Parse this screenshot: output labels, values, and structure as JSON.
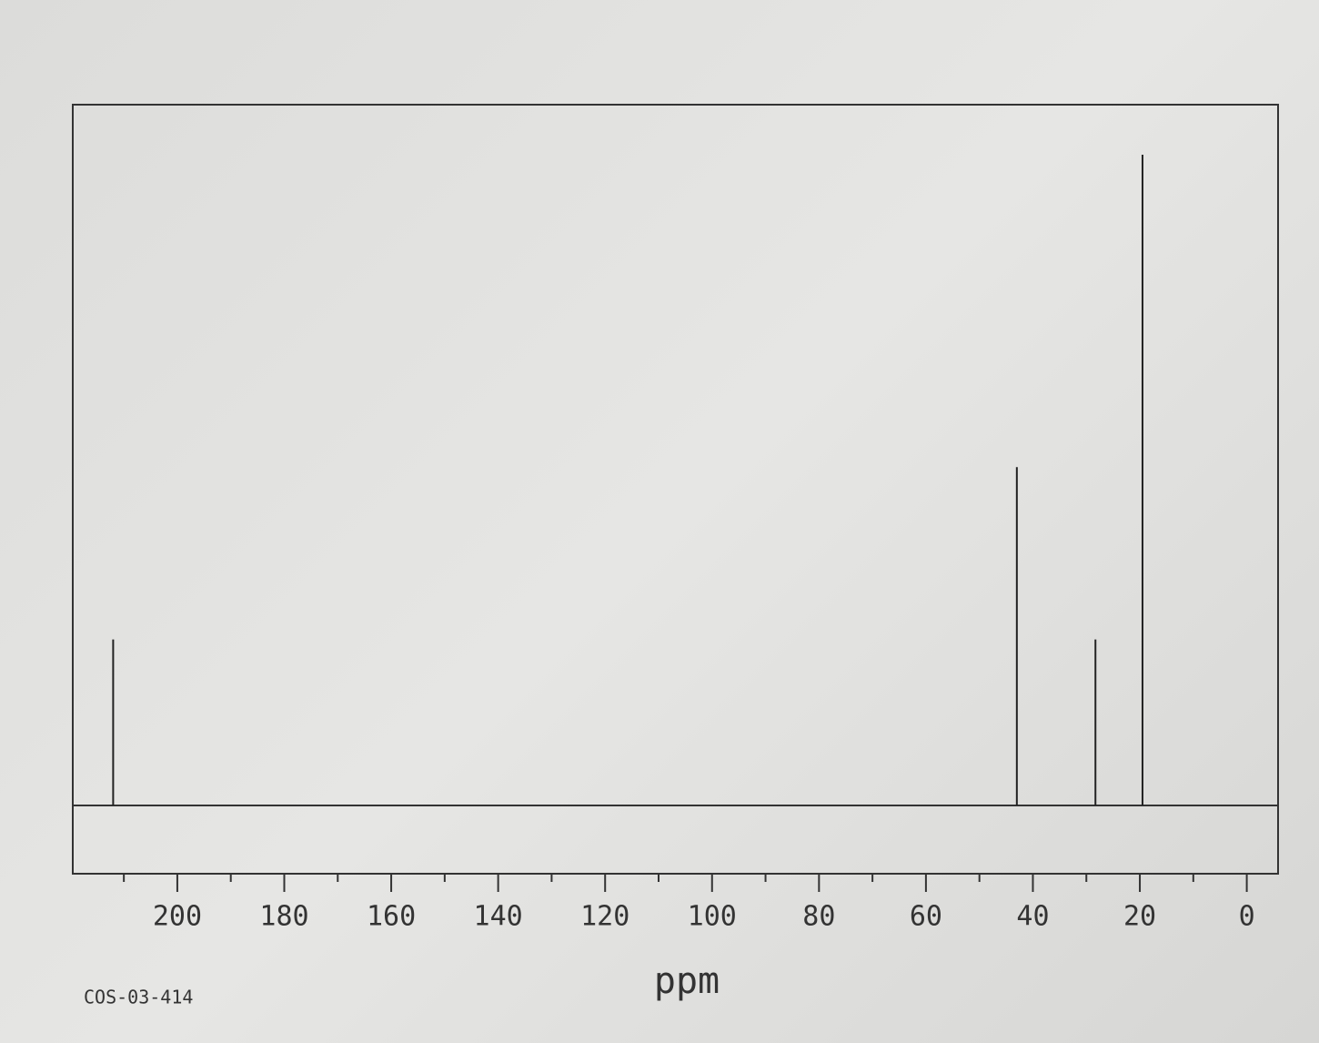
{
  "chart_data": {
    "type": "spectrum",
    "x": [
      212,
      43,
      28.3,
      19.5
    ],
    "values": [
      25.5,
      52,
      25.5,
      100
    ],
    "color": "#222222",
    "xlabel": "ppm",
    "code": "COS-03-414",
    "xlim": [
      217,
      -5
    ],
    "ylim": [
      0,
      100
    ],
    "xticks": [
      200,
      180,
      160,
      140,
      120,
      100,
      80,
      60,
      40,
      20,
      0
    ],
    "xminorticks": [
      210,
      190,
      170,
      150,
      130,
      110,
      90,
      70,
      50,
      30,
      10
    ]
  }
}
